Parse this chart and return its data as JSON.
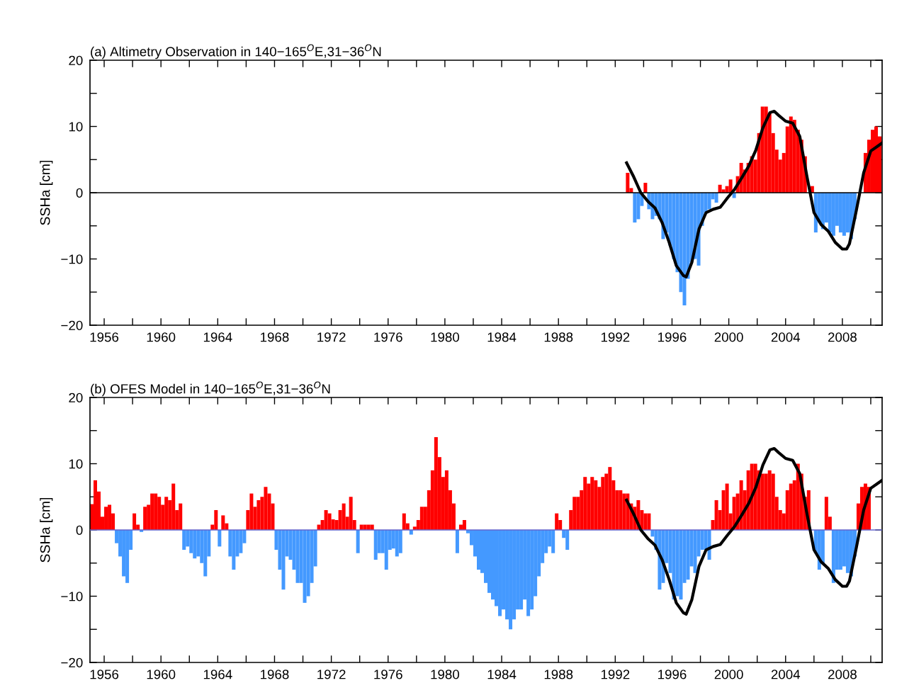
{
  "chart_data": [
    {
      "type": "bar",
      "title": "(a) Altimetry Observation in 140−165$^{O}$E,31−36$^{O}$N",
      "ylabel": "SSHa [cm]",
      "xlim": [
        1955,
        2010.8
      ],
      "ylim": [
        -20,
        20
      ],
      "xticks": [
        1956,
        {
          "value": 1958,
          "label": null
        },
        1960,
        {
          "value": 1962,
          "label": null
        },
        1964,
        {
          "value": 1966,
          "label": null
        },
        1968,
        {
          "value": 1970,
          "label": null
        },
        1972,
        {
          "value": 1974,
          "label": null
        },
        1976,
        {
          "value": 1978,
          "label": null
        },
        1980,
        {
          "value": 1982,
          "label": null
        },
        1984,
        {
          "value": 1986,
          "label": null
        },
        1988,
        {
          "value": 1990,
          "label": null
        },
        1992,
        {
          "value": 1994,
          "label": null
        },
        1996,
        {
          "value": 1998,
          "label": null
        },
        2000,
        {
          "value": 2002,
          "label": null
        },
        2004,
        {
          "value": 2006,
          "label": null
        },
        2008,
        {
          "value": 2010,
          "label": null
        }
      ],
      "yticks": [
        {
          "value": -20,
          "label": "−20"
        },
        {
          "value": -15,
          "label": null
        },
        {
          "value": -10,
          "label": "−10"
        },
        {
          "value": -5,
          "label": null
        },
        0,
        {
          "value": 5,
          "label": null
        },
        10,
        {
          "value": 15,
          "label": null
        },
        20
      ],
      "grid": false,
      "legend": false,
      "ref_lines": [
        {
          "axis": "y",
          "value": 0,
          "color": "#000000"
        }
      ],
      "series": [
        {
          "color": "#ff0000",
          "x": [
            1992.875,
            1993.125,
            1994.125,
            1999.375,
            1999.625,
            1999.875,
            2000.125,
            2000.625,
            2000.875,
            2001.125,
            2001.375,
            2001.625,
            2001.875,
            2002.125,
            2002.375,
            2002.625,
            2002.875,
            2003.125,
            2003.375,
            2003.625,
            2003.875,
            2004.125,
            2004.375,
            2004.625,
            2004.875,
            2005.125,
            2005.375,
            2005.625,
            2005.875,
            2009.375,
            2009.625,
            2009.875,
            2010.125,
            2010.375,
            2010.625
          ],
          "values": [
            3,
            0.7,
            1.5,
            1.2,
            0.5,
            1,
            2,
            2.5,
            4.5,
            3.5,
            4.5,
            5.5,
            5,
            9,
            13,
            13,
            12,
            9,
            6.5,
            5,
            6,
            10,
            11.5,
            11,
            9.5,
            8,
            5.5,
            null,
            1,
            null,
            6,
            8,
            9.5,
            10,
            8.5
          ]
        },
        {
          "color": "#4499ff",
          "x": [
            1993.375,
            1993.625,
            1993.875,
            1994.375,
            1994.625,
            1994.875,
            1995.125,
            1995.375,
            1995.625,
            1995.875,
            1996.125,
            1996.375,
            1996.625,
            1996.875,
            1997.125,
            1997.375,
            1997.625,
            1997.875,
            1998.125,
            1998.375,
            1998.625,
            1998.875,
            1999.125,
            2000.375,
            2006.125,
            2006.375,
            2006.625,
            2006.875,
            2007.125,
            2007.375,
            2007.625,
            2007.875,
            2008.125,
            2008.375,
            2008.625,
            2008.875
          ],
          "values": [
            -4.5,
            -4,
            -2,
            -2.5,
            -4,
            -3.5,
            -4,
            -7,
            -6,
            -8,
            -10,
            -12,
            -15,
            -17,
            -13,
            -10.5,
            -10,
            -11,
            -5,
            -3,
            -2.5,
            -1,
            -1.5,
            -0.8,
            -6,
            -4.5,
            -5.5,
            -4.5,
            -6,
            -6.5,
            -5,
            -6,
            -6.5,
            -6,
            -7,
            -4
          ]
        },
        {
          "type": "line",
          "color": "#000000",
          "x": [
            1992.8,
            1993.3,
            1993.8,
            1994.3,
            1994.8,
            1995.3,
            1995.8,
            1996.3,
            1996.8,
            1997.0,
            1997.4,
            1997.9,
            1998.4,
            1998.9,
            1999.4,
            1999.9,
            2000.4,
            2000.9,
            2001.4,
            2001.9,
            2002.4,
            2002.9,
            2003.2,
            2003.5,
            2004.0,
            2004.5,
            2005.0,
            2005.5,
            2006.0,
            2006.5,
            2007.0,
            2007.5,
            2008.0,
            2008.3,
            2008.5,
            2009.0,
            2009.5,
            2010.0,
            2010.8
          ],
          "values": [
            4.5,
            2.4,
            0,
            -1.3,
            -2.3,
            -4.5,
            -7.5,
            -11,
            -12.5,
            -12.7,
            -10.5,
            -5.5,
            -3,
            -2.5,
            -2.2,
            -0.8,
            0.5,
            2.2,
            4,
            6.4,
            9.8,
            12.1,
            12.3,
            11.7,
            10.8,
            10.5,
            8.5,
            2.5,
            -3,
            -4.8,
            -5.8,
            -7.5,
            -8.5,
            -8.5,
            -7.7,
            -2.5,
            3,
            6.3,
            7.5
          ]
        }
      ]
    },
    {
      "type": "bar",
      "title": "(b) OFES Model in 140−165$^{O}$E,31−36$^{O}$N",
      "ylabel": "SSHa [cm]",
      "xlim": [
        1955,
        2010.8
      ],
      "ylim": [
        -20,
        20
      ],
      "xticks": [
        1956,
        {
          "value": 1958,
          "label": null
        },
        1960,
        {
          "value": 1962,
          "label": null
        },
        1964,
        {
          "value": 1966,
          "label": null
        },
        1968,
        {
          "value": 1970,
          "label": null
        },
        1972,
        {
          "value": 1974,
          "label": null
        },
        1976,
        {
          "value": 1978,
          "label": null
        },
        1980,
        {
          "value": 1982,
          "label": null
        },
        1984,
        {
          "value": 1986,
          "label": null
        },
        1988,
        {
          "value": 1990,
          "label": null
        },
        1992,
        {
          "value": 1994,
          "label": null
        },
        1996,
        {
          "value": 1998,
          "label": null
        },
        2000,
        {
          "value": 2002,
          "label": null
        },
        2004,
        {
          "value": 2006,
          "label": null
        },
        2008,
        {
          "value": 2010,
          "label": null
        }
      ],
      "yticks": [
        {
          "value": -20,
          "label": "−20"
        },
        {
          "value": -15,
          "label": null
        },
        {
          "value": -10,
          "label": "−10"
        },
        {
          "value": -5,
          "label": null
        },
        0,
        {
          "value": 5,
          "label": null
        },
        10,
        {
          "value": 15,
          "label": null
        },
        20
      ],
      "grid": false,
      "legend": false,
      "ref_lines": [
        {
          "axis": "y",
          "value": 0,
          "color": "#6666cc"
        }
      ],
      "series": [
        {
          "color": "#ff0000",
          "x": [
            1955.125,
            1955.375,
            1955.625,
            1955.875,
            1956.125,
            1956.375,
            1956.625,
            1958.125,
            1958.375,
            1958.875,
            1959.125,
            1959.375,
            1959.625,
            1959.875,
            1960.125,
            1960.375,
            1960.625,
            1960.875,
            1961.125,
            1961.375,
            1963.625,
            1963.875,
            1964.375,
            1964.625,
            1966.125,
            1966.375,
            1966.625,
            1966.875,
            1967.125,
            1967.375,
            1967.625,
            1967.875,
            1971.125,
            1971.375,
            1971.625,
            1971.875,
            1972.125,
            1972.375,
            1972.625,
            1972.875,
            1973.125,
            1973.375,
            1973.625,
            1974.125,
            1974.375,
            1974.625,
            1974.875,
            1977.125,
            1977.375,
            1977.875,
            1978.125,
            1978.375,
            1978.625,
            1978.875,
            1979.125,
            1979.375,
            1979.625,
            1979.875,
            1980.125,
            1980.375,
            1980.625,
            1981.125,
            1981.375,
            1987.875,
            1988.125,
            1988.875,
            1989.125,
            1989.375,
            1989.625,
            1989.875,
            1990.125,
            1990.375,
            1990.625,
            1990.875,
            1991.125,
            1991.375,
            1991.625,
            1991.875,
            1992.125,
            1992.375,
            1992.625,
            1992.875,
            1993.125,
            1993.375,
            1993.625,
            1993.875,
            1994.125,
            1994.375,
            1998.875,
            1999.125,
            1999.375,
            1999.625,
            1999.875,
            2000.125,
            2000.375,
            2000.625,
            2000.875,
            2001.125,
            2001.375,
            2001.625,
            2001.875,
            2002.125,
            2002.375,
            2002.625,
            2002.875,
            2003.125,
            2003.375,
            2003.625,
            2003.875,
            2004.125,
            2004.375,
            2004.625,
            2004.875,
            2005.125,
            2005.375,
            2005.625,
            2006.875,
            2007.125,
            2009.125,
            2009.375,
            2009.625,
            2009.875
          ],
          "values": [
            3.9,
            7.5,
            5.8,
            2,
            3.5,
            3.8,
            2.5,
            2.5,
            0.8,
            3.5,
            3.8,
            5.5,
            5.5,
            5,
            3.8,
            5,
            4.5,
            7,
            3,
            4,
            0.8,
            3,
            2.2,
            1,
            3,
            5.5,
            3.5,
            4.5,
            5,
            6.5,
            5.5,
            4,
            0.8,
            1.5,
            3,
            2.5,
            1.6,
            1.5,
            3,
            4,
            2,
            5,
            1.5,
            0.8,
            0.8,
            0.8,
            0.8,
            2.5,
            1,
            0.5,
            1.5,
            3.5,
            3.5,
            6,
            9,
            14,
            11,
            8,
            9,
            6,
            4,
            0.8,
            1.5,
            2.5,
            1.5,
            3,
            5,
            5,
            6,
            8,
            7,
            8,
            7.5,
            6.5,
            8,
            8.5,
            9.5,
            7.5,
            6,
            6,
            5.5,
            5.5,
            4,
            3.5,
            4.5,
            3,
            2.5,
            2.5,
            1.5,
            4.5,
            3,
            6,
            7,
            2.5,
            5,
            5.5,
            7.5,
            6,
            9,
            10,
            10,
            9,
            8.5,
            8.5,
            9,
            8.5,
            5,
            3,
            2.5,
            6,
            7,
            7.5,
            10,
            8.5,
            5,
            6,
            5,
            2,
            4,
            6.5,
            7,
            6.5
          ]
        },
        {
          "color": "#4499ff",
          "x": [
            1956.875,
            1957.125,
            1957.375,
            1957.625,
            1957.875,
            1958.625,
            1961.625,
            1961.875,
            1962.125,
            1962.375,
            1962.625,
            1962.875,
            1963.125,
            1963.375,
            1964.125,
            1964.875,
            1965.125,
            1965.375,
            1965.625,
            1965.875,
            1968.125,
            1968.375,
            1968.625,
            1968.875,
            1969.125,
            1969.375,
            1969.625,
            1969.875,
            1970.125,
            1970.375,
            1970.625,
            1970.875,
            1973.875,
            1975.125,
            1975.375,
            1975.625,
            1975.875,
            1976.125,
            1976.375,
            1976.625,
            1976.875,
            1977.625,
            1980.875,
            1981.625,
            1981.875,
            1982.125,
            1982.375,
            1982.625,
            1982.875,
            1983.125,
            1983.375,
            1983.625,
            1983.875,
            1984.125,
            1984.375,
            1984.625,
            1984.875,
            1985.125,
            1985.375,
            1985.625,
            1985.875,
            1986.125,
            1986.375,
            1986.625,
            1986.875,
            1987.125,
            1987.375,
            1987.625,
            1988.375,
            1988.625,
            1994.625,
            1994.875,
            1995.125,
            1995.375,
            1995.625,
            1995.875,
            1996.125,
            1996.375,
            1996.625,
            1996.875,
            1997.125,
            1997.375,
            1997.625,
            1997.875,
            1998.125,
            1998.375,
            1998.625,
            2005.875,
            2006.125,
            2006.375,
            2006.625,
            2007.375,
            2007.625,
            2007.875,
            2008.125,
            2008.375,
            2008.625,
            2008.875
          ],
          "values": [
            -2,
            -4,
            -7,
            -8,
            -3,
            -0.3,
            -3,
            -2.5,
            -3.5,
            -4.3,
            -4,
            -5,
            -7,
            -4,
            -2.5,
            -4,
            -6,
            -4,
            -3.5,
            -2,
            -3,
            -6,
            -9,
            -4,
            -4.5,
            -6,
            -8,
            -8,
            -11,
            -10,
            -8,
            -5.5,
            -3.5,
            -4.5,
            -3.5,
            -3.5,
            -6,
            -3,
            -2.8,
            -4,
            -3.5,
            -0.7,
            -3.5,
            -0.5,
            -2.3,
            -4,
            -6,
            -6.5,
            -8,
            -9.5,
            -10.5,
            -11.5,
            -13,
            -12,
            -13.5,
            -15,
            -13.5,
            -12,
            -12,
            -10.5,
            -13,
            -12,
            -10,
            -7,
            -5,
            -3.5,
            -2.5,
            -3.5,
            -1.2,
            -3,
            -1,
            -3,
            -9,
            -8,
            -5,
            -6.5,
            -10.5,
            -10,
            -10.5,
            -8,
            -7.5,
            -5.5,
            -6.5,
            -4,
            -3,
            -3,
            -4.5,
            null,
            -3.5,
            -6,
            -5,
            -8,
            -6,
            -6,
            -5.5,
            -6.5,
            -7,
            -4
          ]
        },
        {
          "type": "line",
          "color": "#000000",
          "x": [
            1992.8,
            1993.3,
            1993.8,
            1994.3,
            1994.8,
            1995.3,
            1995.8,
            1996.3,
            1996.8,
            1997.0,
            1997.4,
            1997.9,
            1998.4,
            1998.9,
            1999.4,
            1999.9,
            2000.4,
            2000.9,
            2001.4,
            2001.9,
            2002.4,
            2002.9,
            2003.2,
            2003.5,
            2004.0,
            2004.5,
            2005.0,
            2005.5,
            2006.0,
            2006.5,
            2007.0,
            2007.5,
            2008.0,
            2008.3,
            2008.5,
            2009.0,
            2009.5,
            2010.0,
            2010.8
          ],
          "values": [
            4.5,
            2.4,
            0,
            -1.3,
            -2.3,
            -4.5,
            -7.5,
            -11,
            -12.5,
            -12.7,
            -10.5,
            -5.5,
            -3,
            -2.5,
            -2.2,
            -0.8,
            0.5,
            2.2,
            4,
            6.4,
            9.8,
            12.1,
            12.3,
            11.7,
            10.8,
            10.5,
            8.5,
            2.5,
            -3,
            -4.8,
            -5.8,
            -7.5,
            -8.5,
            -8.5,
            -7.7,
            -2.5,
            3,
            6.3,
            7.5
          ]
        }
      ]
    }
  ]
}
